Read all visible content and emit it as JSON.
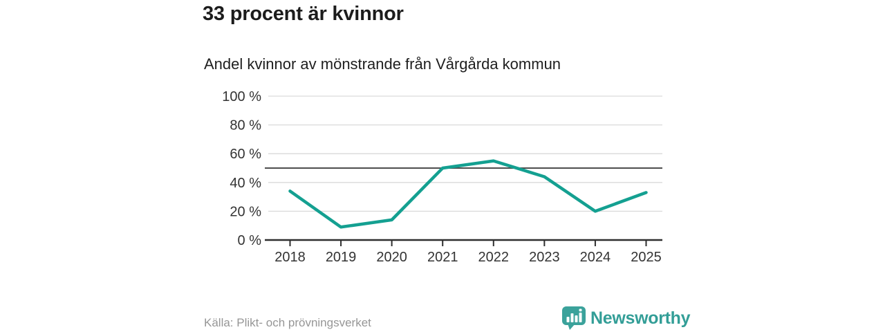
{
  "header": {
    "title": "33 procent är kvinnor",
    "subtitle": "Andel kvinnor av mönstrande från Vårgårda kommun"
  },
  "chart_data": {
    "type": "line",
    "title": "33 procent är kvinnor",
    "subtitle": "Andel kvinnor av mönstrande från Vårgårda kommun",
    "x": [
      "2018",
      "2019",
      "2020",
      "2021",
      "2022",
      "2023",
      "2024",
      "2025"
    ],
    "series": [
      {
        "name": "Andel kvinnor av mönstrande",
        "values": [
          34,
          9,
          14,
          50,
          55,
          44,
          20,
          33
        ]
      }
    ],
    "unit": "%",
    "ylim": [
      0,
      100
    ],
    "yticks": [
      0,
      20,
      40,
      60,
      80,
      100
    ],
    "ytick_labels": [
      "0 %",
      "20 %",
      "40 %",
      "60 %",
      "80 %",
      "100 %"
    ],
    "reference_line": 50,
    "grid": true,
    "legend_position": "none",
    "colors": {
      "line": "#14a091",
      "grid": "#d9d9d9",
      "reference": "#4d4d4d",
      "axis": "#2e2e2e",
      "tick_label": "#333333"
    }
  },
  "footer": {
    "source": "Källa: Plikt- och prövningsverket",
    "brand": "Newsworthy",
    "brand_color": "#339e97"
  }
}
